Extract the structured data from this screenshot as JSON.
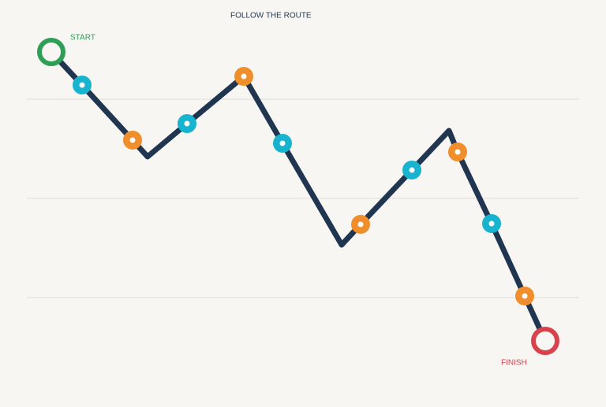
{
  "title": "FOLLOW THE ROUTE",
  "start_label": "START",
  "finish_label": "FINISH"
}
